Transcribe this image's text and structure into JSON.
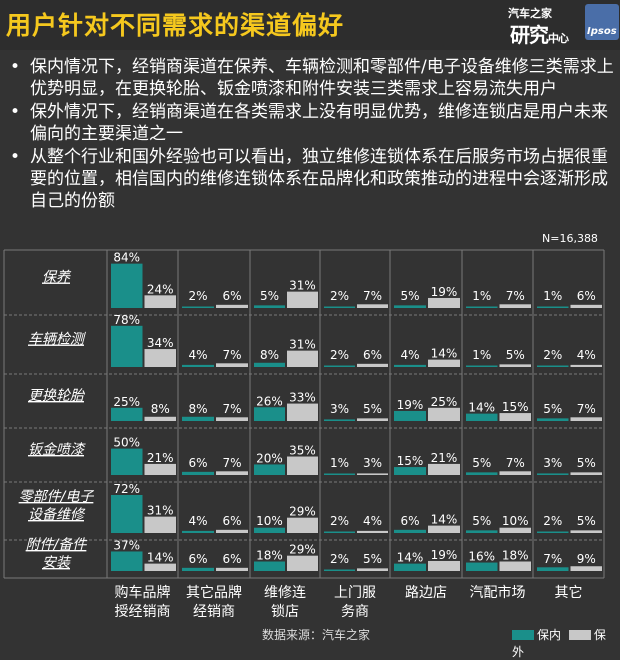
{
  "title": "用户针对不同需求的渠道偏好",
  "logos": {
    "autohome_small": "汽车之家",
    "autohome_big": "研究",
    "autohome_suffix": "中心",
    "ipsos": "Ipsos"
  },
  "bullets": [
    "保内情况下，经销商渠道在保养、车辆检测和零部件/电子设备维修三类需求上优势明显，在更换轮胎、钣金喷漆和附件安装三类需求上容易流失用户",
    "保外情况下，经销商渠道在各类需求上没有明显优势，维修连锁店是用户未来偏向的主要渠道之一",
    "从整个行业和国外经验也可以看出，独立维修连锁体系在后服务市场占据很重要的位置，相信国内的维修连锁体系在品牌化和政策推动的进程中会逐渐形成自己的份额"
  ],
  "bullet_symbol": "•",
  "note": "N=16,388",
  "source": "数据来源：汽车之家",
  "colors": {
    "in": "#1a8f8a",
    "out": "#c8c8c8",
    "title": "#f5c81e",
    "grid": "#7a7a7a"
  },
  "chart_data": {
    "type": "bar",
    "rows": [
      "保养",
      "车辆检测",
      "更换轮胎",
      "钣金喷漆",
      "零部件/电子设备维修",
      "附件/备件安装"
    ],
    "row_label_lines": [
      [
        "保养"
      ],
      [
        "车辆检测"
      ],
      [
        "更换轮胎"
      ],
      [
        "钣金喷漆"
      ],
      [
        "零部件/电子",
        "设备维修"
      ],
      [
        "附件/备件",
        "安装"
      ]
    ],
    "columns": [
      "购车品牌授经销商",
      "其它品牌经销商",
      "维修连锁店",
      "上门服务商",
      "路边店",
      "汽配市场",
      "其它"
    ],
    "column_label_lines": [
      [
        "购车品牌",
        "授经销商"
      ],
      [
        "其它品牌",
        "经销商"
      ],
      [
        "维修连",
        "锁店"
      ],
      [
        "上门服",
        "务商"
      ],
      [
        "路边店"
      ],
      [
        "汽配市场"
      ],
      [
        "其它"
      ]
    ],
    "series": [
      {
        "name": "保内",
        "values": [
          [
            84,
            2,
            5,
            2,
            5,
            1,
            1
          ],
          [
            78,
            4,
            8,
            2,
            4,
            1,
            2
          ],
          [
            25,
            8,
            26,
            3,
            19,
            14,
            5
          ],
          [
            50,
            6,
            20,
            1,
            15,
            5,
            3
          ],
          [
            72,
            4,
            10,
            2,
            6,
            5,
            2
          ],
          [
            37,
            6,
            18,
            2,
            14,
            16,
            7
          ]
        ]
      },
      {
        "name": "保外",
        "values": [
          [
            24,
            6,
            31,
            7,
            19,
            7,
            6
          ],
          [
            34,
            7,
            31,
            6,
            14,
            5,
            4
          ],
          [
            8,
            7,
            33,
            5,
            25,
            15,
            7
          ],
          [
            21,
            7,
            35,
            3,
            21,
            7,
            5
          ],
          [
            31,
            6,
            29,
            4,
            14,
            10,
            5
          ],
          [
            14,
            6,
            29,
            5,
            19,
            18,
            9
          ]
        ]
      }
    ],
    "unit": "%",
    "legend": "bottom-right"
  }
}
